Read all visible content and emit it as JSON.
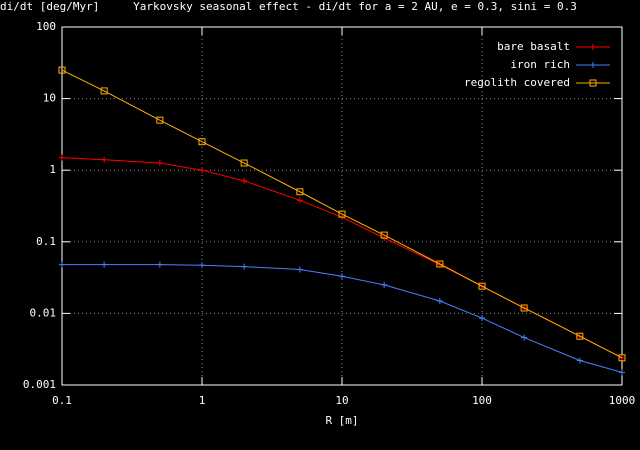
{
  "chart_data": {
    "type": "line",
    "title": "Yarkovsky seasonal effect - di/dt for a = 2 AU, e = 0.3, sini = 0.3",
    "y_label": "di/dt [deg/Myr]",
    "x_label": "R [m]",
    "x": [
      0.1,
      0.2,
      0.5,
      1,
      2,
      5,
      10,
      20,
      50,
      100,
      200,
      500,
      1000
    ],
    "series": [
      {
        "name": "bare basalt",
        "color": "#ff0000",
        "marker": "plus",
        "values": [
          1.5,
          1.4,
          1.26,
          1.0,
          0.71,
          0.38,
          0.22,
          0.113,
          0.048,
          0.024,
          0.0119,
          0.0048,
          0.0024
        ]
      },
      {
        "name": "iron rich",
        "color": "#4a7fff",
        "marker": "plus",
        "values": [
          0.048,
          0.048,
          0.048,
          0.047,
          0.045,
          0.041,
          0.033,
          0.025,
          0.0149,
          0.0086,
          0.0046,
          0.0022,
          0.0015
        ]
      },
      {
        "name": "regolith covered",
        "color": "#ffb000",
        "marker": "square",
        "values": [
          25,
          12.8,
          5.0,
          2.5,
          1.26,
          0.5,
          0.244,
          0.124,
          0.049,
          0.024,
          0.0119,
          0.0048,
          0.0024
        ]
      }
    ],
    "xlim": [
      0.1,
      1000
    ],
    "xticks": [
      0.1,
      1,
      10,
      100,
      1000
    ],
    "ylim": [
      0.001,
      100
    ],
    "yticks": [
      0.001,
      0.01,
      0.1,
      1,
      10,
      100
    ],
    "xscale": "log",
    "yscale": "log",
    "grid": true,
    "legend": "top-right"
  }
}
